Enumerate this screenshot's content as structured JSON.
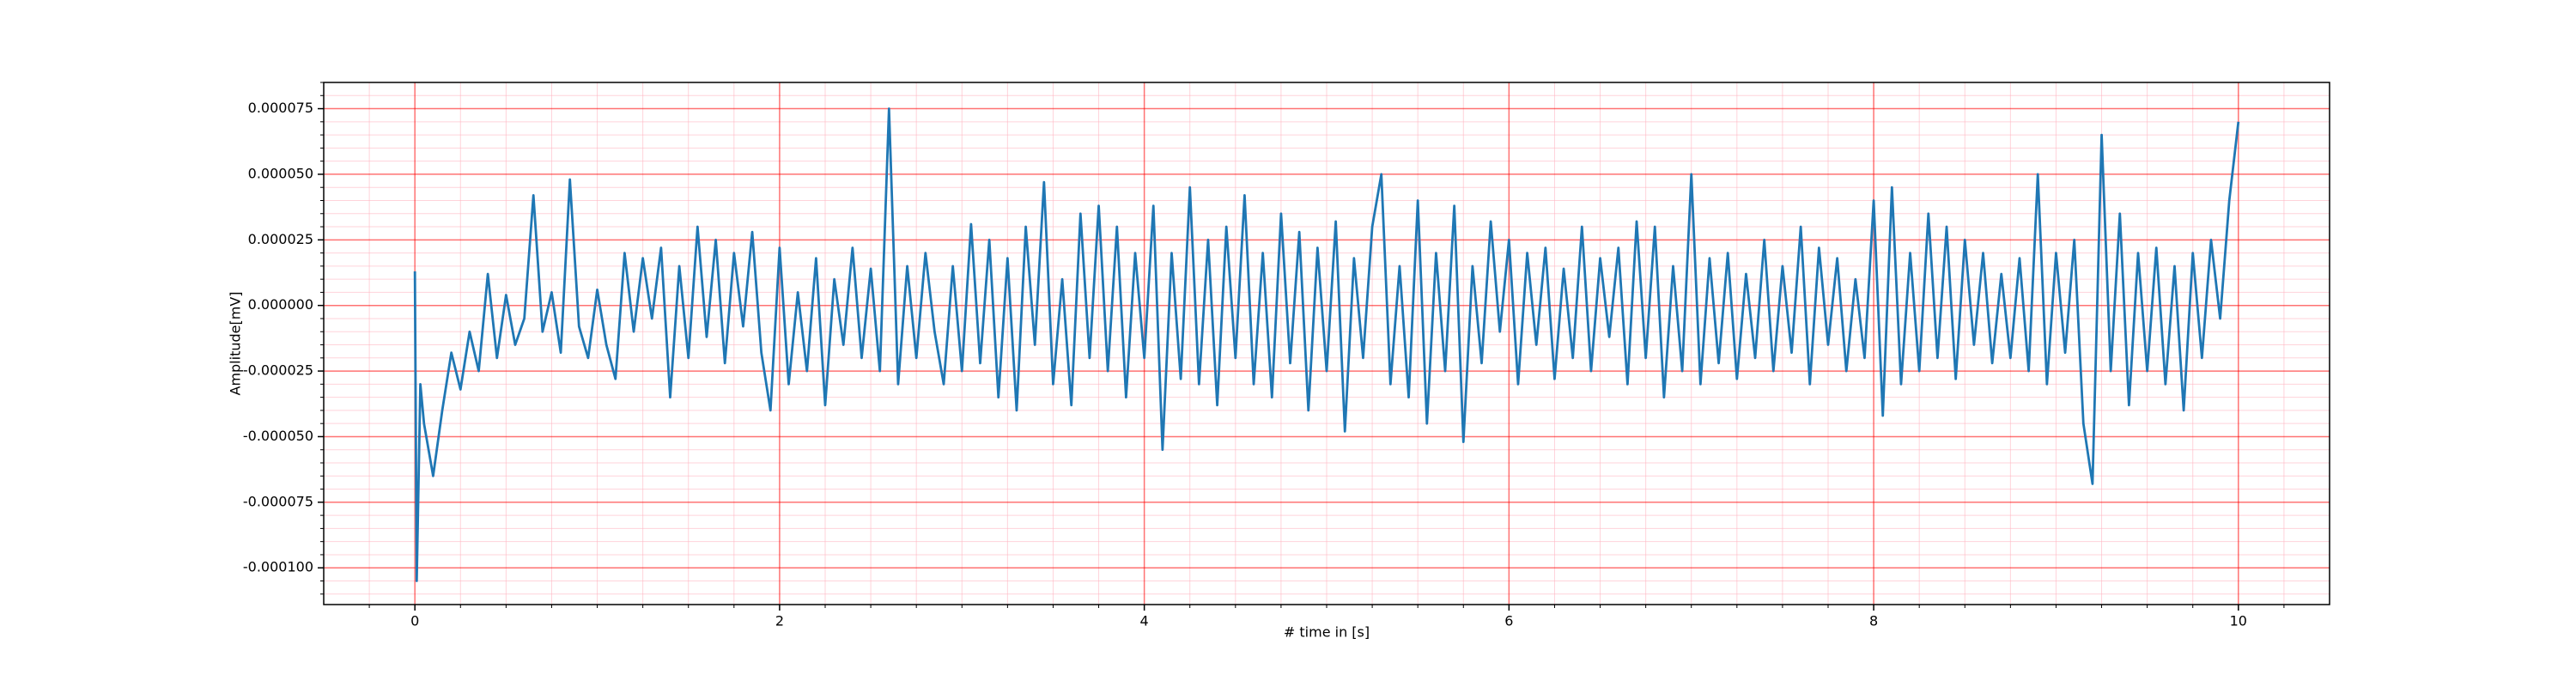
{
  "chart_data": {
    "type": "line",
    "xlabel": "# time in [s]",
    "ylabel": "Amplitude[mV]",
    "xlim": [
      -0.5,
      10.5
    ],
    "ylim": [
      -0.000114,
      8.5e-05
    ],
    "xticks": [
      0,
      2,
      4,
      6,
      8,
      10
    ],
    "yticks": [
      {
        "value": -0.0001,
        "label": "-0.000100"
      },
      -7.5e-05,
      {
        "value": -5e-05,
        "label": "-0.000050"
      },
      -2.5e-05,
      {
        "value": 0,
        "label": "0.000000"
      },
      2.5e-05,
      {
        "value": 5e-05,
        "label": "0.000050"
      },
      7.5e-05
    ],
    "xticks_minor": [
      -0.25,
      0.25,
      0.5,
      0.75,
      1,
      1.25,
      1.5,
      1.75,
      2.25,
      2.5,
      2.75,
      3,
      3.25,
      3.5,
      3.75,
      4.25,
      4.5,
      4.75,
      5,
      5.25,
      5.5,
      5.75,
      6.25,
      6.5,
      6.75,
      7,
      7.25,
      7.5,
      7.75,
      8.25,
      8.5,
      8.75,
      9,
      9.25,
      9.5,
      9.75,
      10.25
    ],
    "yticks_minor": [
      -0.00011,
      -0.000105,
      -9.5e-05,
      -9e-05,
      -8.5e-05,
      -8e-05,
      -7e-05,
      -6.5e-05,
      -6e-05,
      -5.5e-05,
      -4.5e-05,
      -4e-05,
      -3.5e-05,
      -3e-05,
      -2e-05,
      -1.5e-05,
      -1e-05,
      -5e-06,
      5e-06,
      1e-05,
      1.5e-05,
      2e-05,
      3e-05,
      3.5e-05,
      4e-05,
      4.5e-05,
      5.5e-05,
      6e-05,
      6.5e-05,
      7e-05,
      8e-05,
      8.5e-05
    ],
    "grid": true,
    "minor_grid": true,
    "grid_color": "#ff0000",
    "minor_grid_color": "#ffb6c1",
    "series": [
      {
        "color": "#1f77b4",
        "x": [
          0,
          0.01,
          0.03,
          0.05,
          0.1,
          0.15,
          0.2,
          0.25,
          0.3,
          0.35,
          0.4,
          0.45,
          0.5,
          0.55,
          0.6,
          0.65,
          0.7,
          0.75,
          0.8,
          0.85,
          0.9,
          0.95,
          1,
          1.05,
          1.1,
          1.15,
          1.2,
          1.25,
          1.3,
          1.35,
          1.4,
          1.45,
          1.5,
          1.55,
          1.6,
          1.65,
          1.7,
          1.75,
          1.8,
          1.85,
          1.9,
          1.95,
          2,
          2.05,
          2.1,
          2.15,
          2.2,
          2.25,
          2.3,
          2.35,
          2.4,
          2.45,
          2.5,
          2.55,
          2.6,
          2.65,
          2.7,
          2.75,
          2.8,
          2.85,
          2.9,
          2.95,
          3,
          3.05,
          3.1,
          3.15,
          3.2,
          3.25,
          3.3,
          3.35,
          3.4,
          3.45,
          3.5,
          3.55,
          3.6,
          3.65,
          3.7,
          3.75,
          3.8,
          3.85,
          3.9,
          3.95,
          4,
          4.05,
          4.1,
          4.15,
          4.2,
          4.25,
          4.3,
          4.35,
          4.4,
          4.45,
          4.5,
          4.55,
          4.6,
          4.65,
          4.7,
          4.75,
          4.8,
          4.85,
          4.9,
          4.95,
          5,
          5.05,
          5.1,
          5.15,
          5.2,
          5.25,
          5.3,
          5.35,
          5.4,
          5.45,
          5.5,
          5.55,
          5.6,
          5.65,
          5.7,
          5.75,
          5.8,
          5.85,
          5.9,
          5.95,
          6,
          6.05,
          6.1,
          6.15,
          6.2,
          6.25,
          6.3,
          6.35,
          6.4,
          6.45,
          6.5,
          6.55,
          6.6,
          6.65,
          6.7,
          6.75,
          6.8,
          6.85,
          6.9,
          6.95,
          7,
          7.05,
          7.1,
          7.15,
          7.2,
          7.25,
          7.3,
          7.35,
          7.4,
          7.45,
          7.5,
          7.55,
          7.6,
          7.65,
          7.7,
          7.75,
          7.8,
          7.85,
          7.9,
          7.95,
          8,
          8.05,
          8.1,
          8.15,
          8.2,
          8.25,
          8.3,
          8.35,
          8.4,
          8.45,
          8.5,
          8.55,
          8.6,
          8.65,
          8.7,
          8.75,
          8.8,
          8.85,
          8.9,
          8.95,
          9,
          9.05,
          9.1,
          9.15,
          9.2,
          9.25,
          9.3,
          9.35,
          9.4,
          9.45,
          9.5,
          9.55,
          9.6,
          9.65,
          9.7,
          9.75,
          9.8,
          9.85,
          9.9,
          9.95,
          10
        ],
        "values": [
          1.3e-05,
          -0.000105,
          -3e-05,
          -4.5e-05,
          -6.5e-05,
          -4e-05,
          -1.8e-05,
          -3.2e-05,
          -1e-05,
          -2.5e-05,
          1.2e-05,
          -2e-05,
          4e-06,
          -1.5e-05,
          -5e-06,
          4.2e-05,
          -1e-05,
          5e-06,
          -1.8e-05,
          4.8e-05,
          -8e-06,
          -2e-05,
          6e-06,
          -1.5e-05,
          -2.8e-05,
          2e-05,
          -1e-05,
          1.8e-05,
          -5e-06,
          2.2e-05,
          -3.5e-05,
          1.5e-05,
          -2e-05,
          3e-05,
          -1.2e-05,
          2.5e-05,
          -2.2e-05,
          2e-05,
          -8e-06,
          2.8e-05,
          -1.8e-05,
          -4e-05,
          2.2e-05,
          -3e-05,
          5e-06,
          -2.5e-05,
          1.8e-05,
          -3.8e-05,
          1e-05,
          -1.5e-05,
          2.2e-05,
          -2e-05,
          1.4e-05,
          -2.5e-05,
          7.5e-05,
          -3e-05,
          1.5e-05,
          -2e-05,
          2e-05,
          -1e-05,
          -3e-05,
          1.5e-05,
          -2.5e-05,
          3.1e-05,
          -2.2e-05,
          2.5e-05,
          -3.5e-05,
          1.8e-05,
          -4e-05,
          3e-05,
          -1.5e-05,
          4.7e-05,
          -3e-05,
          1e-05,
          -3.8e-05,
          3.5e-05,
          -2e-05,
          3.8e-05,
          -2.5e-05,
          3e-05,
          -3.5e-05,
          2e-05,
          -2e-05,
          3.8e-05,
          -5.5e-05,
          2e-05,
          -2.8e-05,
          4.5e-05,
          -3e-05,
          2.5e-05,
          -3.8e-05,
          3e-05,
          -2e-05,
          4.2e-05,
          -3e-05,
          2e-05,
          -3.5e-05,
          3.5e-05,
          -2.2e-05,
          2.8e-05,
          -4e-05,
          2.2e-05,
          -2.5e-05,
          3.2e-05,
          -4.8e-05,
          1.8e-05,
          -2e-05,
          3e-05,
          5e-05,
          -3e-05,
          1.5e-05,
          -3.5e-05,
          4e-05,
          -4.5e-05,
          2e-05,
          -2.5e-05,
          3.8e-05,
          -5.2e-05,
          1.5e-05,
          -2.2e-05,
          3.2e-05,
          -1e-05,
          2.5e-05,
          -3e-05,
          2e-05,
          -1.5e-05,
          2.2e-05,
          -2.8e-05,
          1.4e-05,
          -2e-05,
          3e-05,
          -2.5e-05,
          1.8e-05,
          -1.2e-05,
          2.2e-05,
          -3e-05,
          3.2e-05,
          -2e-05,
          3e-05,
          -3.5e-05,
          1.5e-05,
          -2.5e-05,
          5e-05,
          -3e-05,
          1.8e-05,
          -2.2e-05,
          2e-05,
          -2.8e-05,
          1.2e-05,
          -2e-05,
          2.5e-05,
          -2.5e-05,
          1.5e-05,
          -1.8e-05,
          3e-05,
          -3e-05,
          2.2e-05,
          -1.5e-05,
          1.8e-05,
          -2.5e-05,
          1e-05,
          -2e-05,
          4e-05,
          -4.2e-05,
          4.5e-05,
          -3e-05,
          2e-05,
          -2.5e-05,
          3.5e-05,
          -2e-05,
          3e-05,
          -2.8e-05,
          2.5e-05,
          -1.5e-05,
          2e-05,
          -2.2e-05,
          1.2e-05,
          -2e-05,
          1.8e-05,
          -2.5e-05,
          5e-05,
          -3e-05,
          2e-05,
          -1.8e-05,
          2.5e-05,
          -4.5e-05,
          -6.8e-05,
          6.5e-05,
          -2.5e-05,
          3.5e-05,
          -3.8e-05,
          2e-05,
          -2.5e-05,
          2.2e-05,
          -3e-05,
          1.5e-05,
          -4e-05,
          2e-05,
          -2e-05,
          2.5e-05,
          -5e-06,
          4e-05,
          7e-05
        ]
      }
    ]
  }
}
